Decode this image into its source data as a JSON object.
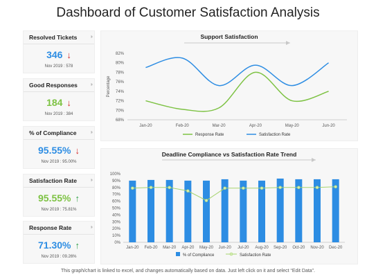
{
  "title": "Dashboard of Customer Satisfaction Analysis",
  "footer": "This graph/chart is linked to excel, and changes automatically based on data. Just left click on it and select “Edit Data”.",
  "colors": {
    "blue": "#2d8de3",
    "green": "#7dc243",
    "up": "#2e9e46",
    "down": "#d32a2a"
  },
  "kpis": [
    {
      "label": "Resolved Tickets",
      "value": "346",
      "trend": "down",
      "sub": "Nov 2019 : 578",
      "color": "#2d8de3"
    },
    {
      "label": "Good Responses",
      "value": "184",
      "trend": "down",
      "sub": "Nov 2019 : 384",
      "color": "#7dc243"
    },
    {
      "label": "% of Compliance",
      "value": "95.55%",
      "trend": "down",
      "sub": "Nov 2019 : 95.00%",
      "color": "#2d8de3"
    },
    {
      "label": "Satisfaction Rate",
      "value": "95.55%",
      "trend": "up",
      "sub": "Nov 2019 : 75.81%",
      "color": "#7dc243"
    },
    {
      "label": "Response Rate",
      "value": "71.30%",
      "trend": "up",
      "sub": "Nov 2019 : 09.26%",
      "color": "#2d8de3"
    }
  ],
  "chart_data": [
    {
      "type": "line",
      "title": "Support Satisfaction",
      "ylabel": "Percentage",
      "xlabel": "",
      "categories": [
        "Jan-20",
        "Feb-20",
        "Mar-20",
        "Apr-20",
        "May-20",
        "Jun-20"
      ],
      "yticks": [
        "68%",
        "70%",
        "72%",
        "74%",
        "76%",
        "78%",
        "80%",
        "82%"
      ],
      "ylim": [
        68,
        82
      ],
      "smooth": true,
      "legend_position": "bottom",
      "series": [
        {
          "name": "Response Rate",
          "color": "#7dc243",
          "values": [
            72,
            70.2,
            70.5,
            78,
            72,
            74
          ]
        },
        {
          "name": "Satisfaction Rate",
          "color": "#2d8de3",
          "values": [
            79,
            81,
            75.2,
            79.5,
            75.2,
            80
          ]
        }
      ]
    },
    {
      "type": "bar",
      "title": "Deadline Compliance vs Satisfaction Rate Trend",
      "xlabel": "",
      "ylabel": "",
      "categories": [
        "Jan-20",
        "Feb-20",
        "Mar-20",
        "Apr-20",
        "May-20",
        "Jun-20",
        "Jul-20",
        "Aug-20",
        "Sep-20",
        "Oct-20",
        "Nov-20",
        "Dec-20"
      ],
      "yticks": [
        "0%",
        "10%",
        "20%",
        "30%",
        "40%",
        "50%",
        "60%",
        "70%",
        "80%",
        "90%",
        "100%"
      ],
      "ylim": [
        0,
        100
      ],
      "legend_position": "bottom",
      "series": [
        {
          "name": "% of Compliance",
          "kind": "bar",
          "color": "#2d8de3",
          "values": [
            90,
            91,
            91,
            90,
            90,
            92,
            90,
            90,
            93,
            92,
            92,
            92
          ]
        },
        {
          "name": "Satisfaction Rate",
          "kind": "line",
          "color": "#a7d46f",
          "values": [
            79,
            80,
            80,
            75,
            61,
            79,
            79,
            79,
            80,
            80,
            80,
            81
          ]
        }
      ]
    }
  ]
}
